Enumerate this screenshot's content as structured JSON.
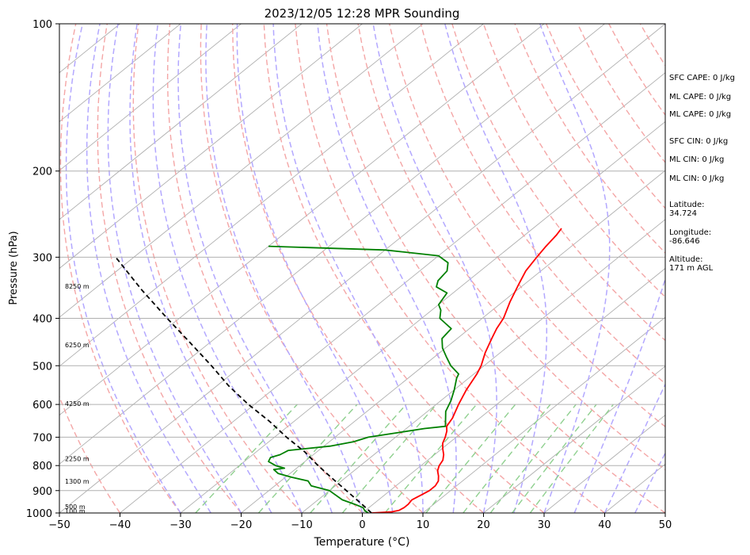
{
  "chart_data": {
    "type": "line",
    "title": "2023/12/05 12:28 MPR Sounding",
    "xlabel": "Temperature (°C)",
    "ylabel": "Pressure (hPa)",
    "xlim": [
      -50,
      50
    ],
    "ylim": [
      1000,
      100
    ],
    "y_scale": "log",
    "skew": true,
    "grid": true,
    "x_ticks": [
      "−50",
      "−40",
      "−30",
      "−20",
      "−10",
      "0",
      "10",
      "20",
      "30",
      "40",
      "50"
    ],
    "y_ticks": [
      "100",
      "200",
      "300",
      "400",
      "500",
      "600",
      "700",
      "800",
      "900",
      "1000"
    ],
    "height_labels": [
      {
        "p": 995,
        "label": "100 m"
      },
      {
        "p": 975,
        "label": "500 m"
      },
      {
        "p": 865,
        "label": "1300 m"
      },
      {
        "p": 778,
        "label": "2250 m"
      },
      {
        "p": 600,
        "label": "4250 m"
      },
      {
        "p": 455,
        "label": "6250 m"
      },
      {
        "p": 345,
        "label": "8250 m"
      }
    ],
    "series": [
      {
        "role": "temperature",
        "color": "#ff0000",
        "points": [
          [
            1000,
            1.5
          ],
          [
            995,
            4.5
          ],
          [
            988,
            5.5
          ],
          [
            975,
            5.8
          ],
          [
            960,
            5.8
          ],
          [
            940,
            5.5
          ],
          [
            920,
            6.0
          ],
          [
            900,
            6.5
          ],
          [
            880,
            6.5
          ],
          [
            860,
            6.0
          ],
          [
            840,
            5.0
          ],
          [
            820,
            3.8
          ],
          [
            800,
            3.0
          ],
          [
            780,
            2.5
          ],
          [
            760,
            1.5
          ],
          [
            740,
            0.2
          ],
          [
            720,
            -1.0
          ],
          [
            700,
            -1.8
          ],
          [
            680,
            -2.8
          ],
          [
            665,
            -3.8
          ],
          [
            640,
            -4.5
          ],
          [
            600,
            -6.3
          ],
          [
            560,
            -8.0
          ],
          [
            520,
            -9.5
          ],
          [
            500,
            -10.5
          ],
          [
            470,
            -12.5
          ],
          [
            440,
            -14.3
          ],
          [
            420,
            -15.5
          ],
          [
            400,
            -16.5
          ],
          [
            370,
            -18.8
          ],
          [
            340,
            -21.0
          ],
          [
            320,
            -22.5
          ],
          [
            300,
            -23.5
          ],
          [
            285,
            -24.2
          ],
          [
            270,
            -24.8
          ],
          [
            262,
            -25.3
          ]
        ]
      },
      {
        "role": "dewpoint",
        "color": "#008000",
        "points": [
          [
            1000,
            1.0
          ],
          [
            990,
            0.0
          ],
          [
            975,
            -1.0
          ],
          [
            960,
            -3.0
          ],
          [
            940,
            -6.0
          ],
          [
            900,
            -10.0
          ],
          [
            880,
            -14.0
          ],
          [
            860,
            -15.5
          ],
          [
            845,
            -19.0
          ],
          [
            830,
            -22.0
          ],
          [
            815,
            -23.5
          ],
          [
            810,
            -22.0
          ],
          [
            800,
            -24.0
          ],
          [
            785,
            -26.0
          ],
          [
            770,
            -26.5
          ],
          [
            760,
            -25.5
          ],
          [
            745,
            -25.0
          ],
          [
            730,
            -19.0
          ],
          [
            715,
            -16.0
          ],
          [
            700,
            -14.5
          ],
          [
            685,
            -10.5
          ],
          [
            672,
            -7.0
          ],
          [
            665,
            -4.0
          ],
          [
            620,
            -7.0
          ],
          [
            590,
            -8.3
          ],
          [
            560,
            -10.0
          ],
          [
            530,
            -12.0
          ],
          [
            520,
            -12.5
          ],
          [
            500,
            -15.5
          ],
          [
            480,
            -18.0
          ],
          [
            460,
            -20.5
          ],
          [
            440,
            -22.5
          ],
          [
            420,
            -23.0
          ],
          [
            400,
            -27.0
          ],
          [
            385,
            -28.5
          ],
          [
            375,
            -30.0
          ],
          [
            355,
            -31.0
          ],
          [
            345,
            -34.0
          ],
          [
            335,
            -35.0
          ],
          [
            320,
            -35.5
          ],
          [
            308,
            -37.0
          ],
          [
            298,
            -40.0
          ],
          [
            290,
            -50.0
          ],
          [
            285,
            -70.0
          ]
        ]
      },
      {
        "role": "parcel",
        "color": "#000000",
        "style": "dashed",
        "points": [
          [
            1000,
            1.5
          ],
          [
            985,
            0.3
          ],
          [
            950,
            -2.7
          ],
          [
            900,
            -7.2
          ],
          [
            850,
            -12.0
          ],
          [
            800,
            -17.0
          ],
          [
            750,
            -22.0
          ],
          [
            700,
            -28.0
          ],
          [
            650,
            -34.0
          ],
          [
            600,
            -41.0
          ],
          [
            550,
            -48.0
          ],
          [
            500,
            -55.0
          ],
          [
            450,
            -63.0
          ],
          [
            400,
            -72.0
          ],
          [
            350,
            -82.0
          ],
          [
            300,
            -93.0
          ]
        ]
      }
    ],
    "reference_lines": {
      "isotherm_color": "#b0b0b0",
      "dry_adiabat_color": "#f4a6a6",
      "moist_adiabat_color": "#b3a8ff",
      "mixing_ratio_color": "#8fd08f"
    }
  },
  "stats": {
    "sfc_cape": "SFC CAPE: 0 J/kg",
    "ml_cape_1": "ML CAPE: 0 J/kg",
    "ml_cape_2": "ML CAPE: 0 J/kg",
    "sfc_cin": "SFC CIN: 0 J/kg",
    "ml_cin_1": "ML CIN: 0 J/kg",
    "ml_cin_2": "ML CIN: 0 J/kg",
    "latitude_label": "Latitude:",
    "latitude_value": "34.724",
    "longitude_label": "Longitude:",
    "longitude_value": "-86.646",
    "altitude_label": "Altitude:",
    "altitude_value": "171 m AGL"
  }
}
